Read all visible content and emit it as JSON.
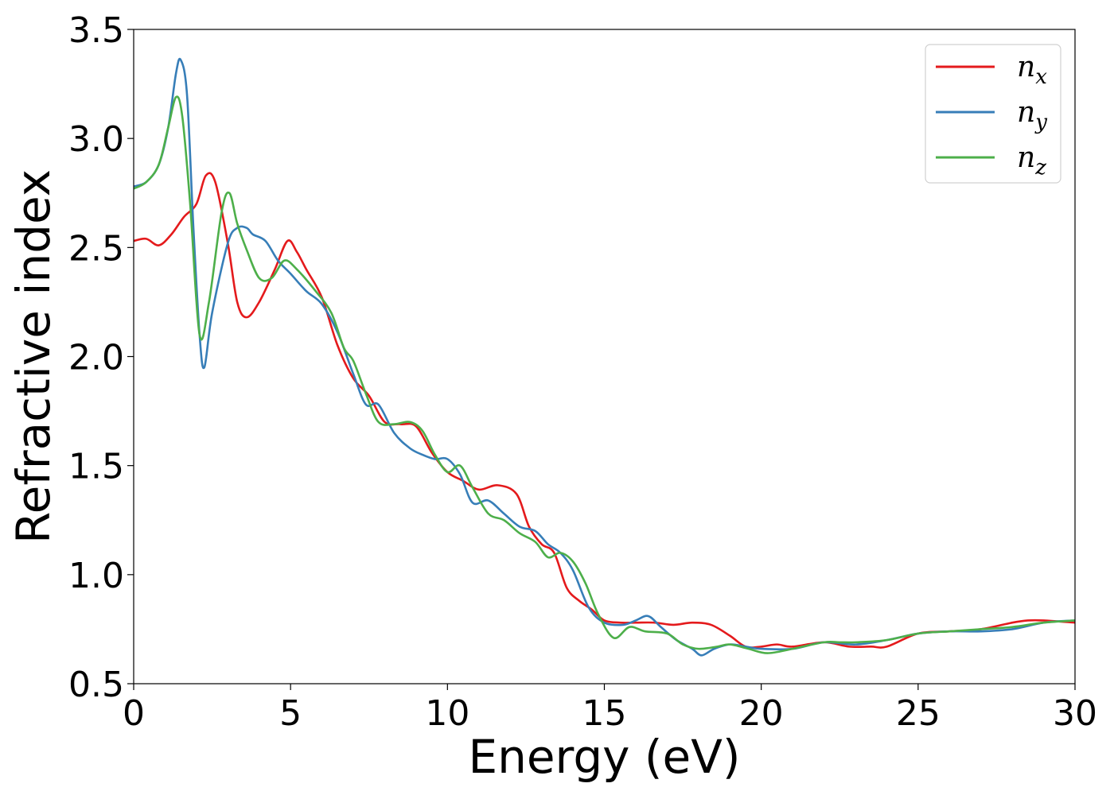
{
  "chart_data": {
    "type": "line",
    "xlabel": "Energy (eV)",
    "ylabel": "Refractive index",
    "xlim": [
      0,
      30
    ],
    "ylim": [
      0.5,
      3.5
    ],
    "xticks": [
      "0",
      "5",
      "10",
      "15",
      "20",
      "25",
      "30"
    ],
    "yticks": [
      "0.5",
      "1.0",
      "1.5",
      "2.0",
      "2.5",
      "3.0",
      "3.5"
    ],
    "grid": false,
    "legend_position": "top-right",
    "series": [
      {
        "name": "n",
        "subscript": "x",
        "color": "#e41a1c",
        "points": [
          [
            0,
            2.53
          ],
          [
            0.4,
            2.54
          ],
          [
            0.8,
            2.51
          ],
          [
            1.2,
            2.56
          ],
          [
            1.6,
            2.64
          ],
          [
            2.0,
            2.7
          ],
          [
            2.3,
            2.83
          ],
          [
            2.6,
            2.8
          ],
          [
            3.0,
            2.52
          ],
          [
            3.3,
            2.25
          ],
          [
            3.6,
            2.18
          ],
          [
            4.0,
            2.25
          ],
          [
            4.5,
            2.4
          ],
          [
            4.9,
            2.53
          ],
          [
            5.2,
            2.48
          ],
          [
            5.5,
            2.4
          ],
          [
            6.0,
            2.27
          ],
          [
            6.5,
            2.05
          ],
          [
            7.0,
            1.9
          ],
          [
            7.5,
            1.82
          ],
          [
            8.0,
            1.7
          ],
          [
            8.5,
            1.69
          ],
          [
            9.0,
            1.68
          ],
          [
            9.5,
            1.56
          ],
          [
            10.0,
            1.47
          ],
          [
            10.5,
            1.43
          ],
          [
            11.0,
            1.39
          ],
          [
            11.6,
            1.41
          ],
          [
            12.2,
            1.37
          ],
          [
            12.6,
            1.22
          ],
          [
            13.0,
            1.14
          ],
          [
            13.4,
            1.1
          ],
          [
            13.8,
            0.94
          ],
          [
            14.2,
            0.88
          ],
          [
            14.6,
            0.84
          ],
          [
            15.0,
            0.79
          ],
          [
            15.5,
            0.78
          ],
          [
            16.0,
            0.78
          ],
          [
            16.6,
            0.78
          ],
          [
            17.2,
            0.77
          ],
          [
            17.8,
            0.78
          ],
          [
            18.4,
            0.77
          ],
          [
            19.0,
            0.72
          ],
          [
            19.5,
            0.67
          ],
          [
            20.0,
            0.67
          ],
          [
            20.5,
            0.68
          ],
          [
            21.0,
            0.67
          ],
          [
            22.0,
            0.69
          ],
          [
            22.8,
            0.67
          ],
          [
            23.5,
            0.67
          ],
          [
            24.0,
            0.67
          ],
          [
            25.0,
            0.73
          ],
          [
            26.0,
            0.74
          ],
          [
            27.0,
            0.75
          ],
          [
            28.0,
            0.78
          ],
          [
            28.5,
            0.79
          ],
          [
            29.0,
            0.79
          ],
          [
            30.0,
            0.78
          ]
        ]
      },
      {
        "name": "n",
        "subscript": "y",
        "color": "#377eb8",
        "points": [
          [
            0,
            2.78
          ],
          [
            0.4,
            2.8
          ],
          [
            0.8,
            2.88
          ],
          [
            1.1,
            3.05
          ],
          [
            1.35,
            3.3
          ],
          [
            1.5,
            3.36
          ],
          [
            1.7,
            3.2
          ],
          [
            1.9,
            2.6
          ],
          [
            2.1,
            2.1
          ],
          [
            2.25,
            1.95
          ],
          [
            2.5,
            2.2
          ],
          [
            3.0,
            2.52
          ],
          [
            3.3,
            2.59
          ],
          [
            3.6,
            2.59
          ],
          [
            3.8,
            2.56
          ],
          [
            4.2,
            2.53
          ],
          [
            4.6,
            2.44
          ],
          [
            5.0,
            2.38
          ],
          [
            5.5,
            2.3
          ],
          [
            6.0,
            2.24
          ],
          [
            6.5,
            2.11
          ],
          [
            7.0,
            1.92
          ],
          [
            7.4,
            1.78
          ],
          [
            7.8,
            1.78
          ],
          [
            8.3,
            1.65
          ],
          [
            8.8,
            1.58
          ],
          [
            9.2,
            1.55
          ],
          [
            9.6,
            1.53
          ],
          [
            10.0,
            1.53
          ],
          [
            10.4,
            1.46
          ],
          [
            10.8,
            1.33
          ],
          [
            11.3,
            1.34
          ],
          [
            11.8,
            1.28
          ],
          [
            12.3,
            1.22
          ],
          [
            12.8,
            1.2
          ],
          [
            13.2,
            1.14
          ],
          [
            13.6,
            1.1
          ],
          [
            14.0,
            1.02
          ],
          [
            14.5,
            0.85
          ],
          [
            15.0,
            0.78
          ],
          [
            15.6,
            0.77
          ],
          [
            16.0,
            0.79
          ],
          [
            16.4,
            0.81
          ],
          [
            16.8,
            0.76
          ],
          [
            17.3,
            0.7
          ],
          [
            17.8,
            0.66
          ],
          [
            18.1,
            0.63
          ],
          [
            18.5,
            0.66
          ],
          [
            19.0,
            0.68
          ],
          [
            19.5,
            0.67
          ],
          [
            20.0,
            0.66
          ],
          [
            21.0,
            0.66
          ],
          [
            22.0,
            0.69
          ],
          [
            23.0,
            0.68
          ],
          [
            24.0,
            0.7
          ],
          [
            25.0,
            0.73
          ],
          [
            26.0,
            0.74
          ],
          [
            27.0,
            0.74
          ],
          [
            28.0,
            0.75
          ],
          [
            29.0,
            0.78
          ],
          [
            30.0,
            0.79
          ]
        ]
      },
      {
        "name": "n",
        "subscript": "z",
        "color": "#4daf4a",
        "points": [
          [
            0,
            2.77
          ],
          [
            0.4,
            2.8
          ],
          [
            0.8,
            2.88
          ],
          [
            1.1,
            3.05
          ],
          [
            1.35,
            3.19
          ],
          [
            1.55,
            3.1
          ],
          [
            1.8,
            2.7
          ],
          [
            2.1,
            2.1
          ],
          [
            2.4,
            2.25
          ],
          [
            2.8,
            2.66
          ],
          [
            3.05,
            2.75
          ],
          [
            3.3,
            2.61
          ],
          [
            3.6,
            2.49
          ],
          [
            4.0,
            2.36
          ],
          [
            4.4,
            2.36
          ],
          [
            4.8,
            2.44
          ],
          [
            5.2,
            2.4
          ],
          [
            5.8,
            2.3
          ],
          [
            6.3,
            2.2
          ],
          [
            6.7,
            2.04
          ],
          [
            7.0,
            1.98
          ],
          [
            7.4,
            1.83
          ],
          [
            7.8,
            1.7
          ],
          [
            8.3,
            1.69
          ],
          [
            8.8,
            1.7
          ],
          [
            9.2,
            1.66
          ],
          [
            9.6,
            1.55
          ],
          [
            10.0,
            1.47
          ],
          [
            10.4,
            1.5
          ],
          [
            10.8,
            1.4
          ],
          [
            11.3,
            1.28
          ],
          [
            11.8,
            1.25
          ],
          [
            12.3,
            1.19
          ],
          [
            12.8,
            1.15
          ],
          [
            13.2,
            1.08
          ],
          [
            13.6,
            1.1
          ],
          [
            14.0,
            1.06
          ],
          [
            14.4,
            0.96
          ],
          [
            14.8,
            0.82
          ],
          [
            15.3,
            0.71
          ],
          [
            15.8,
            0.76
          ],
          [
            16.3,
            0.74
          ],
          [
            17.0,
            0.73
          ],
          [
            17.5,
            0.68
          ],
          [
            18.0,
            0.66
          ],
          [
            18.6,
            0.67
          ],
          [
            19.0,
            0.68
          ],
          [
            19.6,
            0.66
          ],
          [
            20.2,
            0.64
          ],
          [
            21.0,
            0.66
          ],
          [
            22.0,
            0.69
          ],
          [
            22.5,
            0.69
          ],
          [
            23.0,
            0.69
          ],
          [
            24.0,
            0.7
          ],
          [
            25.0,
            0.73
          ],
          [
            26.0,
            0.74
          ],
          [
            27.0,
            0.75
          ],
          [
            28.0,
            0.76
          ],
          [
            29.0,
            0.78
          ],
          [
            30.0,
            0.79
          ]
        ]
      }
    ]
  }
}
